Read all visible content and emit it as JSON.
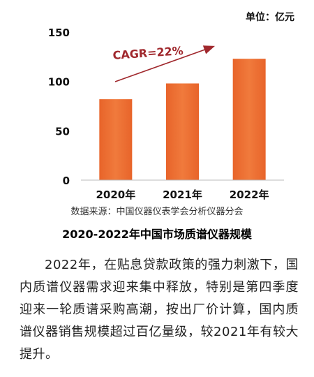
{
  "chart_data": {
    "type": "bar",
    "title": "2020-2022年中国市场质谱仪器规模",
    "categories": [
      "2020年",
      "2021年",
      "2022年"
    ],
    "values": [
      82,
      98,
      123
    ],
    "ylim": [
      0,
      150
    ],
    "yticks": [
      0,
      50,
      100,
      150
    ],
    "unit": "单位：亿元",
    "annotation": "CAGR=22%",
    "bar_color": "#E8642A",
    "bar_color_light": "#F07A3C",
    "arrow_color": "#A0282D",
    "grid": false
  },
  "source_text": "数据来源：中国仪器仪表学会分析仪器分会",
  "caption": "2020-2022年中国市场质谱仪器规模",
  "paragraph": "2022年，在贴息贷款政策的强力刺激下，国内质谱仪器需求迎来集中释放，特别是第四季度迎来一轮质谱采购高潮，按出厂价计算，国内质谱仪器销售规模超过百亿量级，较2021年有较大提升。"
}
